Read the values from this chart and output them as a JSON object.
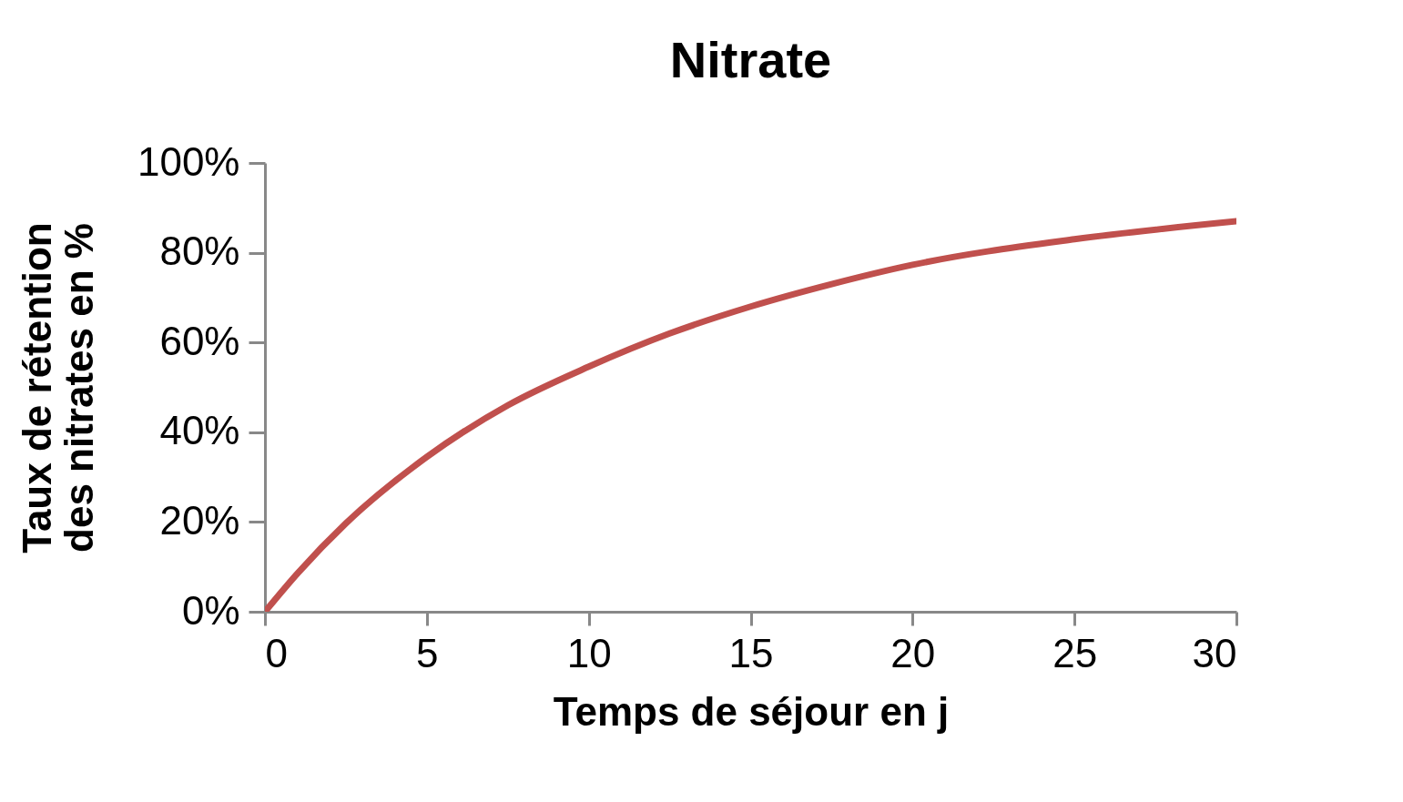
{
  "chart_data": {
    "type": "line",
    "title": "Nitrate",
    "xlabel": "Temps de séjour en j",
    "ylabel": "Taux de rétention des nitrates en %",
    "x": [
      0,
      1,
      2.5,
      5,
      7.5,
      10,
      12.5,
      15,
      17.5,
      20,
      25,
      30
    ],
    "series": [
      {
        "color": "#c0504d",
        "values": [
          0,
          8.5,
          19.7,
          34.5,
          46,
          54.6,
          62,
          68,
          73,
          77.3,
          83,
          87
        ]
      }
    ],
    "xlim": [
      0,
      30
    ],
    "xticks": [
      0,
      5,
      10,
      15,
      20,
      25,
      30
    ],
    "ylim": [
      0,
      100
    ],
    "yticks": [
      {
        "value": 0,
        "label": "0%"
      },
      {
        "value": 20,
        "label": "20%"
      },
      {
        "value": 40,
        "label": "40%"
      },
      {
        "value": 60,
        "label": "60%"
      },
      {
        "value": 80,
        "label": "80%"
      },
      {
        "value": 100,
        "label": "100%"
      }
    ],
    "grid": false,
    "marker": "none",
    "line_style": "solid"
  }
}
